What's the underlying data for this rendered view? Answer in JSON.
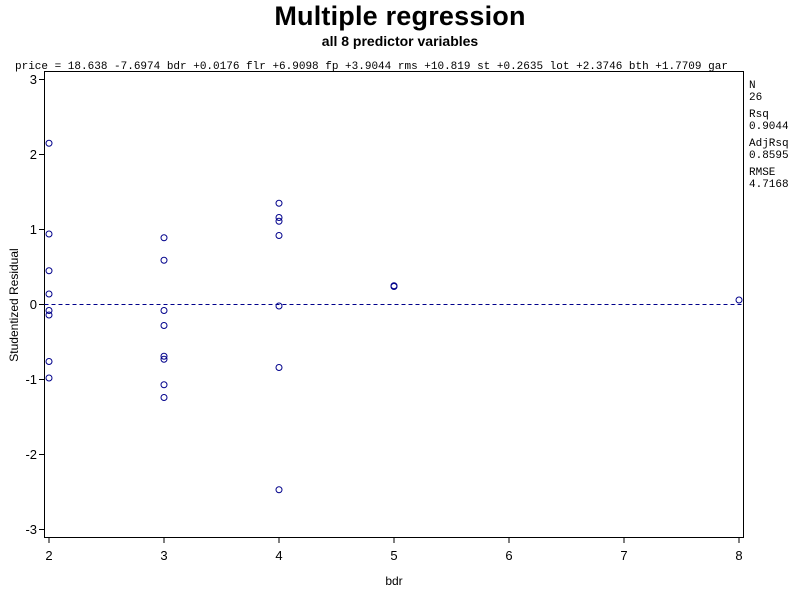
{
  "title": "Multiple regression",
  "subtitle": "all 8 predictor variables",
  "equation": "price = 18.638 -7.6974 bdr +0.0176 flr +6.9098 fp +3.9044 rms +10.819 st +0.2635 lot +2.3746 bth +1.7709 gar",
  "stats": [
    {
      "label": "N",
      "value": "26"
    },
    {
      "label": "Rsq",
      "value": "0.9044"
    },
    {
      "label": "AdjRsq",
      "value": "0.8595"
    },
    {
      "label": "RMSE",
      "value": "4.7168"
    }
  ],
  "colors": {
    "points": "#00008b",
    "reference_line": "#00008b",
    "axis": "#000000"
  },
  "chart_data": {
    "type": "scatter",
    "title": "Multiple regression",
    "subtitle": "all 8 predictor variables",
    "xlabel": "bdr",
    "ylabel": "Studentized Residual",
    "xlim": [
      2,
      8
    ],
    "ylim": [
      -3.1,
      3.1
    ],
    "xticks": [
      2,
      3,
      4,
      5,
      6,
      7,
      8
    ],
    "yticks": [
      -3,
      -2,
      -1,
      0,
      1,
      2,
      3
    ],
    "reference_line": {
      "axis": "y",
      "value": 0,
      "style": "dashed"
    },
    "grid": false,
    "marker": "circle",
    "points": [
      {
        "x": 2,
        "y": 2.15
      },
      {
        "x": 2,
        "y": 0.94
      },
      {
        "x": 2,
        "y": 0.45
      },
      {
        "x": 2,
        "y": 0.14
      },
      {
        "x": 2,
        "y": -0.08
      },
      {
        "x": 2,
        "y": -0.14
      },
      {
        "x": 2,
        "y": -0.76
      },
      {
        "x": 2,
        "y": -0.98
      },
      {
        "x": 3,
        "y": 0.89
      },
      {
        "x": 3,
        "y": 0.59
      },
      {
        "x": 3,
        "y": -0.08
      },
      {
        "x": 3,
        "y": -0.28
      },
      {
        "x": 3,
        "y": -0.69
      },
      {
        "x": 3,
        "y": -0.73
      },
      {
        "x": 3,
        "y": -1.07
      },
      {
        "x": 3,
        "y": -1.24
      },
      {
        "x": 4,
        "y": 1.35
      },
      {
        "x": 4,
        "y": 1.16
      },
      {
        "x": 4,
        "y": 1.11
      },
      {
        "x": 4,
        "y": 0.92
      },
      {
        "x": 4,
        "y": -0.02
      },
      {
        "x": 4,
        "y": -0.84
      },
      {
        "x": 4,
        "y": -2.47
      },
      {
        "x": 5,
        "y": 0.25
      },
      {
        "x": 5,
        "y": 0.24
      },
      {
        "x": 8,
        "y": 0.06
      }
    ]
  }
}
